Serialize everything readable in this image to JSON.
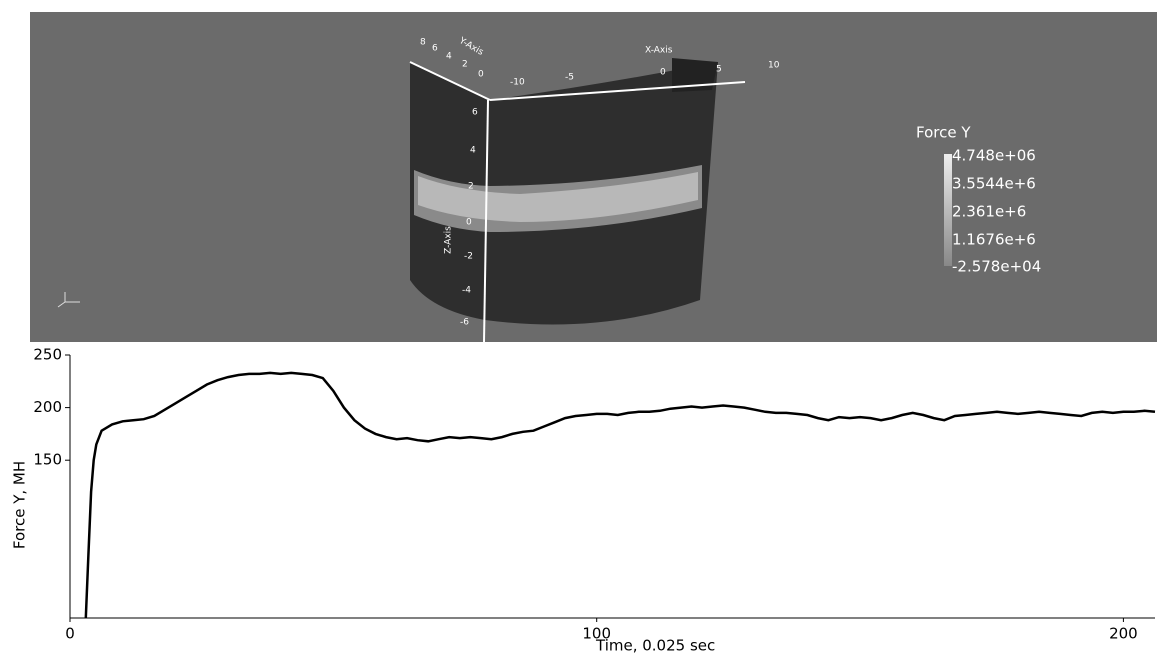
{
  "render": {
    "axis_titles": {
      "x": "X-Axis",
      "y": "Y-Axis",
      "z": "Z-Axis"
    },
    "x_ticks": [
      "-10",
      "-5",
      "0",
      "5",
      "10"
    ],
    "y_ticks": [
      "8",
      "6",
      "4",
      "2",
      "0"
    ],
    "z_ticks": [
      "6",
      "4",
      "2",
      "0",
      "-2",
      "-4",
      "-6"
    ],
    "colorbar": {
      "title": "Force Y",
      "labels": [
        "4.748e+06",
        "3.5544e+6",
        "2.361e+6",
        "1.1676e+6",
        "-2.578e+04"
      ]
    }
  },
  "chart_data": {
    "type": "line",
    "color": "#000000",
    "x_label": "Time, 0.025 sec",
    "y_label": "Force Y, MH",
    "xlim": [
      0,
      206
    ],
    "ylim": [
      0,
      250
    ],
    "xticks": [
      0,
      100,
      200
    ],
    "yticks": [
      150,
      200,
      250
    ],
    "x": [
      3,
      3.5,
      4,
      4.5,
      5,
      6,
      8,
      10,
      12,
      14,
      16,
      18,
      20,
      22,
      24,
      26,
      28,
      30,
      32,
      34,
      36,
      38,
      40,
      42,
      44,
      46,
      48,
      50,
      52,
      54,
      56,
      58,
      60,
      62,
      64,
      66,
      68,
      70,
      72,
      74,
      76,
      78,
      80,
      82,
      84,
      86,
      88,
      90,
      92,
      94,
      96,
      98,
      100,
      102,
      104,
      106,
      108,
      110,
      112,
      114,
      116,
      118,
      120,
      122,
      124,
      126,
      128,
      130,
      132,
      134,
      136,
      138,
      140,
      142,
      144,
      146,
      148,
      150,
      152,
      154,
      156,
      158,
      160,
      162,
      164,
      166,
      168,
      170,
      172,
      174,
      176,
      178,
      180,
      182,
      184,
      186,
      188,
      190,
      192,
      194,
      196,
      198,
      200,
      202,
      204,
      206
    ],
    "values": [
      0,
      60,
      120,
      150,
      165,
      178,
      184,
      187,
      188,
      189,
      192,
      198,
      204,
      210,
      216,
      222,
      226,
      229,
      231,
      232,
      232,
      233,
      232,
      233,
      232,
      231,
      228,
      216,
      200,
      188,
      180,
      175,
      172,
      170,
      171,
      169,
      168,
      170,
      172,
      171,
      172,
      171,
      170,
      172,
      175,
      177,
      178,
      182,
      186,
      190,
      192,
      193,
      194,
      194,
      193,
      195,
      196,
      196,
      197,
      199,
      200,
      201,
      200,
      201,
      202,
      201,
      200,
      198,
      196,
      195,
      195,
      194,
      193,
      190,
      188,
      191,
      190,
      191,
      190,
      188,
      190,
      193,
      195,
      193,
      190,
      188,
      192,
      193,
      194,
      195,
      196,
      195,
      194,
      195,
      196,
      195,
      194,
      193,
      192,
      195,
      196,
      195,
      196,
      196,
      197,
      196
    ]
  }
}
